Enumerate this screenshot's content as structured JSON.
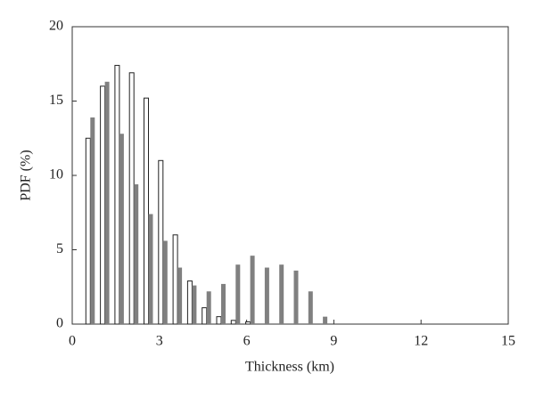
{
  "chart_data": {
    "type": "bar",
    "xlabel": "Thickness (km)",
    "ylabel": "PDF (%)",
    "x": [
      0.5,
      1.0,
      1.5,
      2.0,
      2.5,
      3.0,
      3.5,
      4.0,
      4.5,
      5.0,
      5.5,
      6.0,
      6.5,
      7.0,
      7.5,
      8.0,
      8.5
    ],
    "series": [
      {
        "color": "#ffffff",
        "values": [
          12.5,
          16.0,
          17.4,
          16.9,
          15.2,
          11.0,
          6.0,
          2.9,
          1.1,
          0.5,
          0.25,
          0.15,
          0,
          0,
          0,
          0,
          0
        ]
      },
      {
        "color": "#808080",
        "values": [
          13.9,
          16.3,
          12.8,
          9.4,
          7.4,
          5.6,
          3.8,
          2.6,
          2.2,
          2.7,
          4.0,
          4.6,
          3.8,
          4.0,
          3.6,
          2.2,
          0.5
        ]
      }
    ],
    "xlim": [
      0,
      15
    ],
    "xticks": [
      0,
      3,
      6,
      9,
      12,
      15
    ],
    "ylim": [
      0,
      20
    ],
    "yticks": [
      0,
      5,
      10,
      15,
      20
    ]
  }
}
